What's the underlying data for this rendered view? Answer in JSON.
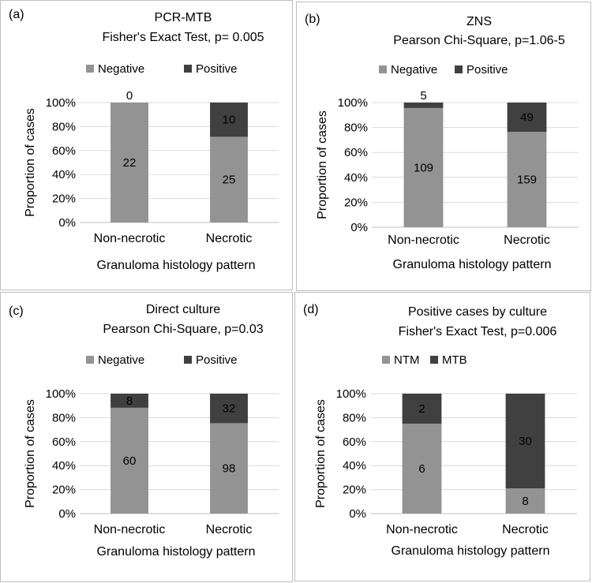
{
  "colors": {
    "light": "#939393",
    "dark": "#404040",
    "grid": "#d9d9d9",
    "axis": "#bfbfbf"
  },
  "chart_data": [
    {
      "panel_label": "(a)",
      "type": "bar",
      "stacked": "percent",
      "title": "PCR-MTB",
      "subtitle": "Fisher's Exact Test, p= 0.005",
      "categories": [
        "Non-necrotic",
        "Necrotic"
      ],
      "series": [
        {
          "name": "Negative",
          "values": [
            22,
            25
          ],
          "color": "#939393"
        },
        {
          "name": "Positive",
          "values": [
            0,
            10
          ],
          "color": "#404040"
        }
      ],
      "xlabel": "Granuloma histology pattern",
      "ylabel": "Proportion of cases",
      "yticks": [
        "0%",
        "20%",
        "40%",
        "60%",
        "80%",
        "100%"
      ],
      "ylim": [
        0,
        100
      ],
      "legend": "top"
    },
    {
      "panel_label": "(b)",
      "type": "bar",
      "stacked": "percent",
      "title": "ZNS",
      "subtitle": "Pearson Chi-Square, p=1.06-5",
      "categories": [
        "Non-necrotic",
        "Necrotic"
      ],
      "series": [
        {
          "name": "Negative",
          "values": [
            109,
            159
          ],
          "color": "#939393"
        },
        {
          "name": "Positive",
          "values": [
            5,
            49
          ],
          "color": "#404040"
        }
      ],
      "xlabel": "Granuloma histology pattern",
      "ylabel": "Proportion of cases",
      "yticks": [
        "0%",
        "20%",
        "40%",
        "60%",
        "80%",
        "100%"
      ],
      "ylim": [
        0,
        100
      ],
      "legend": "top"
    },
    {
      "panel_label": "(c)",
      "type": "bar",
      "stacked": "percent",
      "title": "Direct culture",
      "subtitle": "Pearson Chi-Square, p=0.03",
      "categories": [
        "Non-necrotic",
        "Necrotic"
      ],
      "series": [
        {
          "name": "Negative",
          "values": [
            60,
            98
          ],
          "color": "#939393"
        },
        {
          "name": "Positive",
          "values": [
            8,
            32
          ],
          "color": "#404040"
        }
      ],
      "xlabel": "Granuloma histology pattern",
      "ylabel": "Proportion of cases",
      "yticks": [
        "0%",
        "20%",
        "40%",
        "60%",
        "80%",
        "100%"
      ],
      "ylim": [
        0,
        100
      ],
      "legend": "top"
    },
    {
      "panel_label": "(d)",
      "type": "bar",
      "stacked": "percent",
      "title": "Positive cases by culture",
      "subtitle": "Fisher's Exact Test, p=0.006",
      "categories": [
        "Non-necrotic",
        "Necrotic"
      ],
      "series": [
        {
          "name": "NTM",
          "values": [
            6,
            8
          ],
          "color": "#939393"
        },
        {
          "name": "MTB",
          "values": [
            2,
            30
          ],
          "color": "#404040"
        }
      ],
      "xlabel": "Granuloma histology pattern",
      "ylabel": "Proportion of cases",
      "yticks": [
        "0%",
        "20%",
        "40%",
        "60%",
        "80%",
        "100%"
      ],
      "ylim": [
        0,
        100
      ],
      "legend": "top"
    }
  ]
}
